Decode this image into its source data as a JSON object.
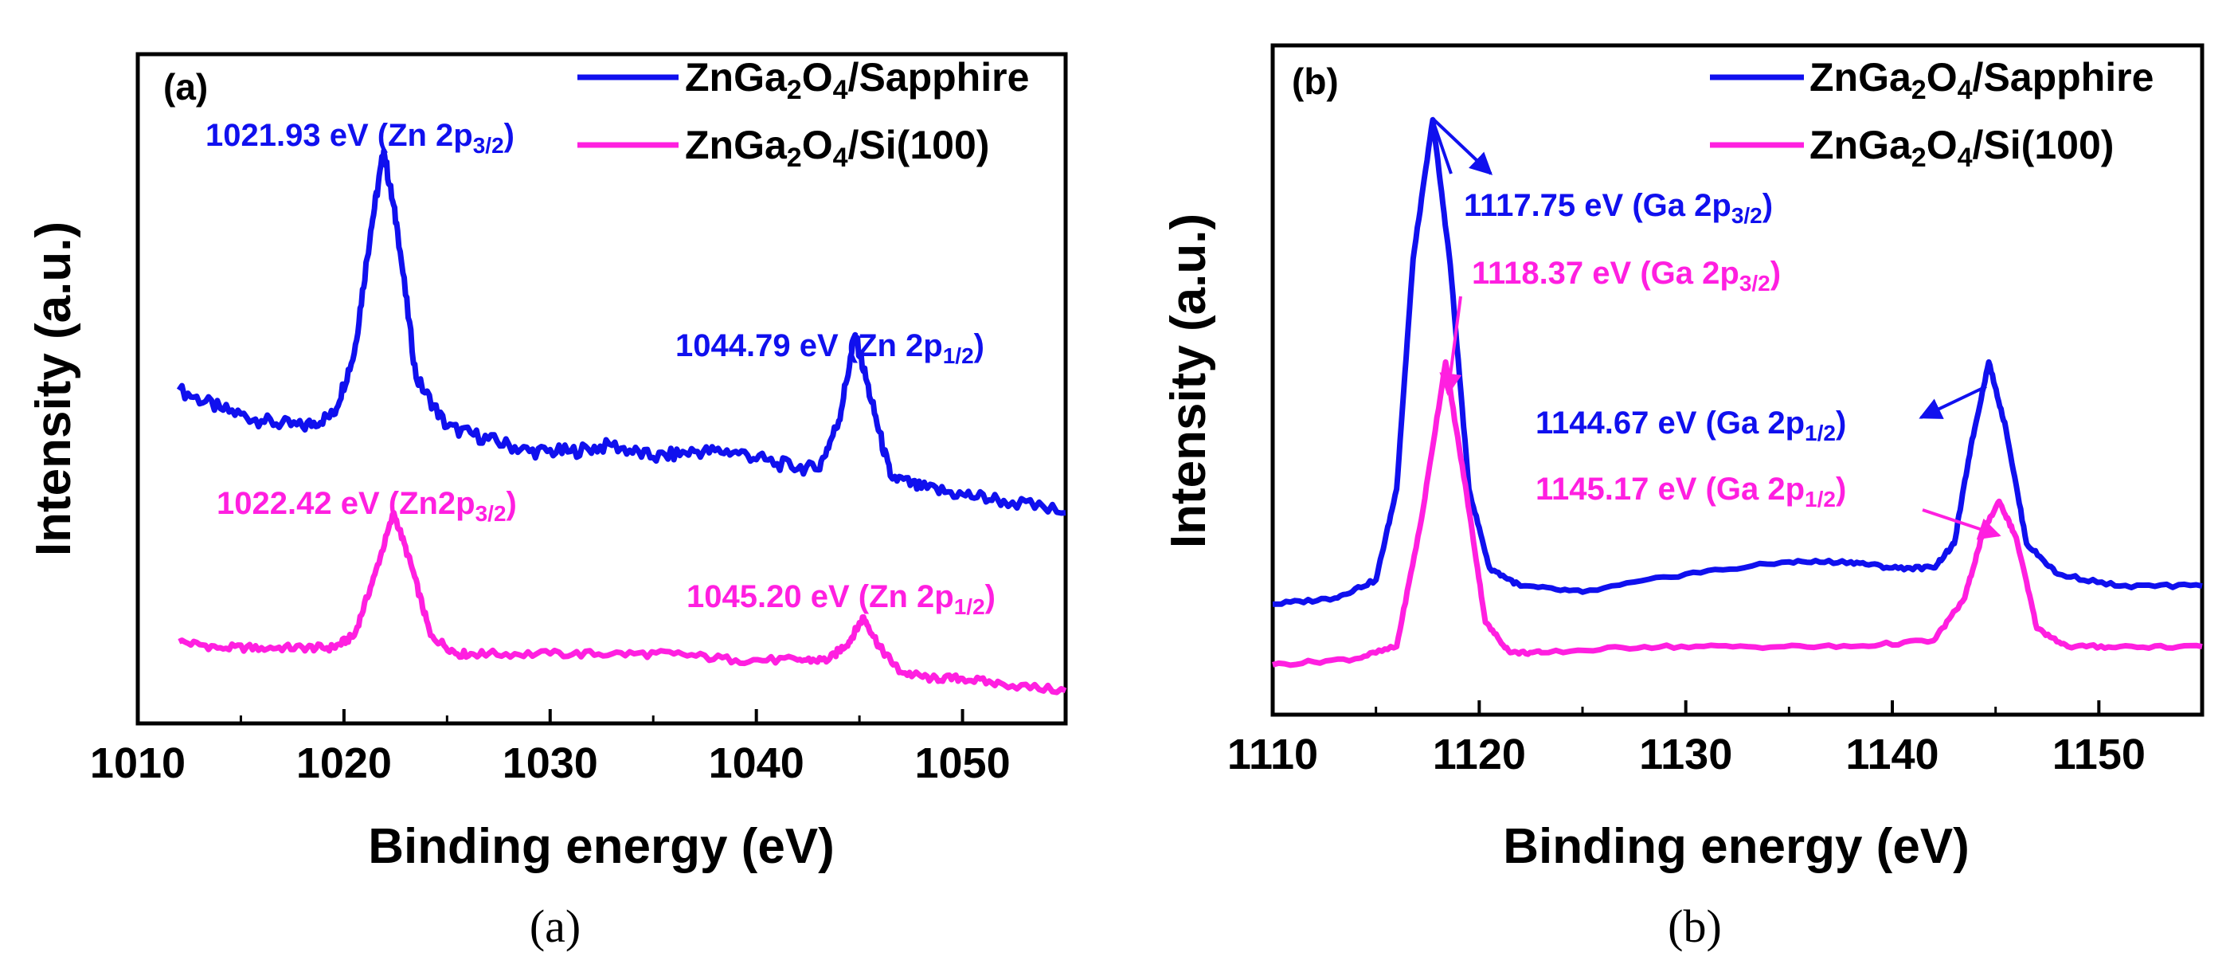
{
  "colors": {
    "sapphire": "#1010ee",
    "si": "#ff1fe0",
    "axis": "#000000"
  },
  "chart_data": [
    {
      "type": "line",
      "panel_label": "(a)",
      "caption": "(a)",
      "xlabel": "Binding energy (eV)",
      "ylabel": "Intensity (a.u.)",
      "xlim": [
        1010,
        1055
      ],
      "ylim": [
        0,
        1
      ],
      "xticks": [
        1010,
        1020,
        1030,
        1040,
        1050
      ],
      "xtick_labels": [
        "1010",
        "1020",
        "1030",
        "1040",
        "1050"
      ],
      "legend_position": "top-right",
      "series": [
        {
          "name": "ZnGa2O4/Sapphire",
          "legend_main": "ZnGa",
          "legend_sub1": "2",
          "legend_mid": "O",
          "legend_sub2": "4",
          "legend_end": "/Sapphire",
          "color": "#1010ee",
          "x": [
            1012.0,
            1014.0,
            1016.0,
            1018.0,
            1019.5,
            1020.5,
            1021.3,
            1021.93,
            1022.6,
            1023.5,
            1025.0,
            1027.0,
            1029.0,
            1031.0,
            1033.0,
            1035.0,
            1037.0,
            1039.0,
            1041.0,
            1043.0,
            1044.0,
            1044.79,
            1045.6,
            1046.5,
            1048.0,
            1050.0,
            1052.0,
            1055.0
          ],
          "y": [
            0.52,
            0.49,
            0.47,
            0.46,
            0.48,
            0.58,
            0.78,
            0.91,
            0.78,
            0.54,
            0.46,
            0.44,
            0.42,
            0.42,
            0.43,
            0.41,
            0.42,
            0.42,
            0.4,
            0.39,
            0.47,
            0.61,
            0.5,
            0.38,
            0.36,
            0.35,
            0.34,
            0.32
          ]
        },
        {
          "name": "ZnGa2O4/Si(100)",
          "legend_main": "ZnGa",
          "legend_sub1": "2",
          "legend_mid": "O",
          "legend_sub2": "4",
          "legend_end": "/Si(100)",
          "color": "#ff1fe0",
          "x": [
            1012.0,
            1014.0,
            1016.0,
            1018.0,
            1019.5,
            1020.5,
            1021.5,
            1022.42,
            1023.3,
            1024.2,
            1025.5,
            1027.0,
            1030.0,
            1033.0,
            1036.0,
            1039.0,
            1042.0,
            1043.5,
            1044.5,
            1045.2,
            1046.0,
            1047.0,
            1048.5,
            1050.0,
            1052.0,
            1055.0
          ],
          "y": [
            0.11,
            0.1,
            0.1,
            0.1,
            0.1,
            0.12,
            0.22,
            0.32,
            0.23,
            0.12,
            0.09,
            0.09,
            0.09,
            0.09,
            0.09,
            0.08,
            0.08,
            0.08,
            0.11,
            0.15,
            0.1,
            0.06,
            0.05,
            0.05,
            0.04,
            0.03
          ]
        }
      ],
      "annotations": [
        {
          "label_main": "1021.93 eV (Zn 2p",
          "label_sub": "3/2",
          "label_end": ")",
          "series": 0,
          "x": 1021.93
        },
        {
          "label_main": "1044.79 eV (Zn 2p",
          "label_sub": "1/2",
          "label_end": ")",
          "series": 0,
          "x": 1044.79
        },
        {
          "label_main": "1022.42 eV (Zn2p",
          "label_sub": "3/2",
          "label_end": ")",
          "series": 1,
          "x": 1022.42
        },
        {
          "label_main": "1045.20 eV (Zn 2p",
          "label_sub": "1/2",
          "label_end": ")",
          "series": 1,
          "x": 1045.2
        }
      ]
    },
    {
      "type": "line",
      "panel_label": "(b)",
      "caption": "(b)",
      "xlabel": "Binding energy (eV)",
      "ylabel": "Intensity (a.u.)",
      "xlim": [
        1110,
        1155
      ],
      "ylim": [
        0,
        1
      ],
      "xticks": [
        1110,
        1120,
        1130,
        1140,
        1150
      ],
      "xtick_labels": [
        "1110",
        "1120",
        "1130",
        "1140",
        "1150"
      ],
      "legend_position": "top-right",
      "series": [
        {
          "name": "ZnGa2O4/Sapphire",
          "legend_main": "ZnGa",
          "legend_sub1": "2",
          "legend_mid": "O",
          "legend_sub2": "4",
          "legend_end": "/Sapphire",
          "color": "#1010ee",
          "x": [
            1110.0,
            1113.0,
            1115.0,
            1116.0,
            1116.8,
            1117.75,
            1118.6,
            1119.5,
            1120.5,
            1122.0,
            1125.0,
            1130.0,
            1135.0,
            1138.0,
            1140.0,
            1142.0,
            1143.0,
            1143.8,
            1144.67,
            1145.5,
            1146.5,
            1148.0,
            1151.0,
            1155.0
          ],
          "y": [
            0.16,
            0.17,
            0.2,
            0.35,
            0.73,
            0.96,
            0.72,
            0.35,
            0.22,
            0.19,
            0.18,
            0.21,
            0.23,
            0.23,
            0.22,
            0.22,
            0.26,
            0.42,
            0.56,
            0.45,
            0.26,
            0.21,
            0.19,
            0.19
          ]
        },
        {
          "name": "ZnGa2O4/Si(100)",
          "legend_main": "ZnGa",
          "legend_sub1": "2",
          "legend_mid": "O",
          "legend_sub2": "4",
          "legend_end": "/Si(100)",
          "color": "#ff1fe0",
          "x": [
            1110.0,
            1114.0,
            1116.0,
            1117.2,
            1118.37,
            1119.4,
            1120.3,
            1121.5,
            1123.0,
            1128.0,
            1133.0,
            1138.0,
            1142.0,
            1143.5,
            1144.4,
            1145.17,
            1146.0,
            1147.0,
            1148.5,
            1151.0,
            1155.0
          ],
          "y": [
            0.06,
            0.07,
            0.09,
            0.3,
            0.56,
            0.34,
            0.13,
            0.08,
            0.08,
            0.09,
            0.09,
            0.09,
            0.1,
            0.17,
            0.28,
            0.33,
            0.27,
            0.12,
            0.09,
            0.09,
            0.09
          ]
        }
      ],
      "annotations": [
        {
          "label_main": "1117.75 eV (Ga 2p",
          "label_sub": "3/2",
          "label_end": ")",
          "series": 0,
          "x": 1117.75
        },
        {
          "label_main": "1118.37 eV (Ga 2p",
          "label_sub": "3/2",
          "label_end": ")",
          "series": 1,
          "x": 1118.37
        },
        {
          "label_main": "1144.67 eV (Ga 2p",
          "label_sub": "1/2",
          "label_end": ")",
          "series": 0,
          "x": 1144.67
        },
        {
          "label_main": "1145.17 eV (Ga 2p",
          "label_sub": "1/2",
          "label_end": ")",
          "series": 1,
          "x": 1145.17
        }
      ]
    }
  ]
}
